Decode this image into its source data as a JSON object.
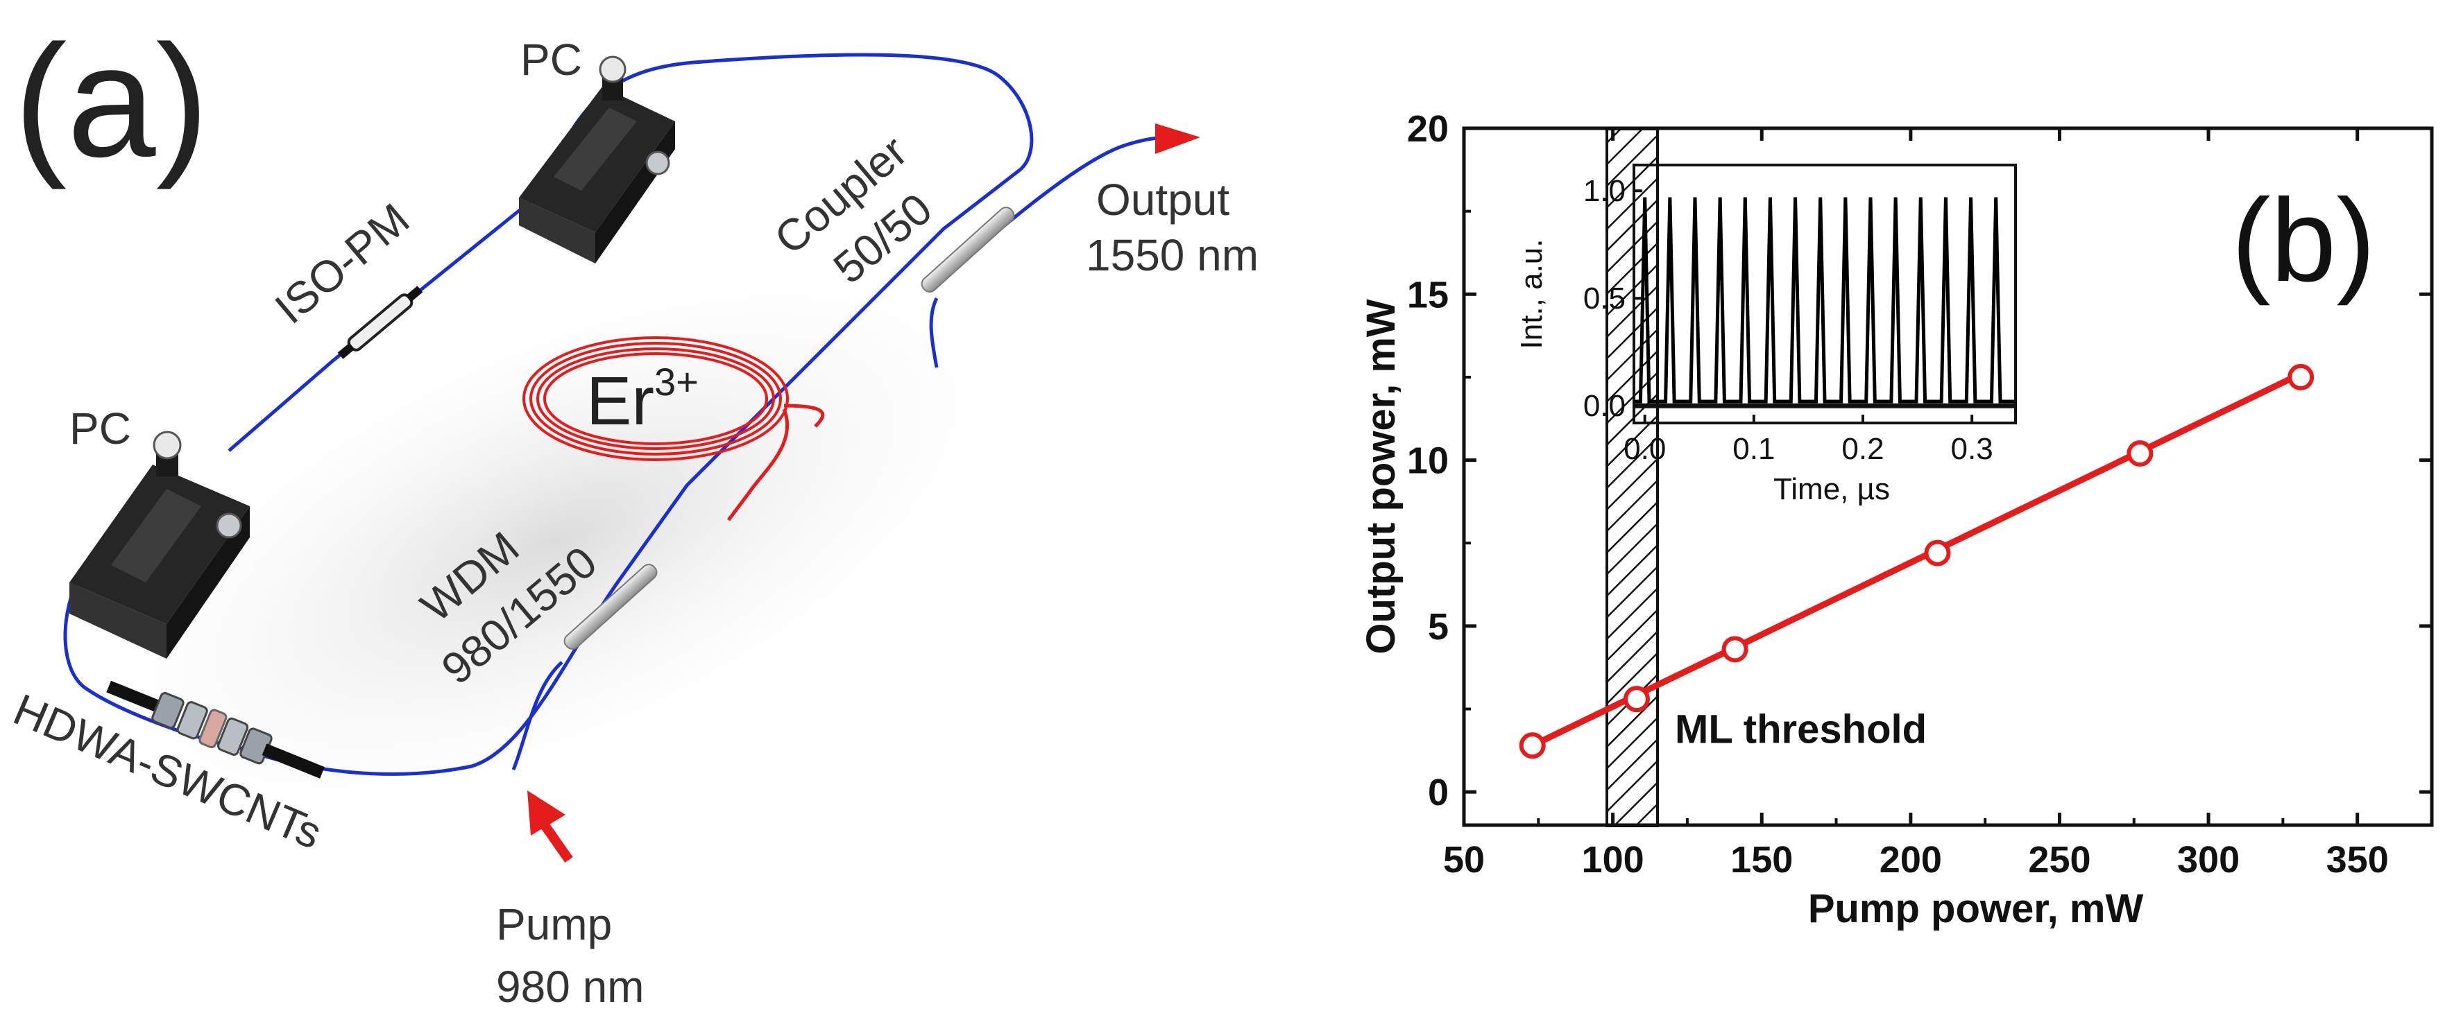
{
  "panel_a": {
    "label": "(a)",
    "components": {
      "pc_top": "PC",
      "pc_left": "PC",
      "isolator": "ISO-PM",
      "coupler_line1": "Coupler",
      "coupler_line2": "50/50",
      "output_line1": "Output",
      "output_line2": "1550 nm",
      "er_base": "Er",
      "er_sup": "3+",
      "wdm_line1": "WDM",
      "wdm_line2": "980/1550",
      "saturable_absorber": "HDWA-SWCNTs",
      "pump_line1": "Pump",
      "pump_line2": "980 nm"
    },
    "colors": {
      "fiber": "#1a2fd0",
      "active_fiber": "#e51c1c",
      "arrow": "#e51c1c",
      "device": "#2a2a2a"
    }
  },
  "chart_data": [
    {
      "id": "main",
      "type": "line",
      "panel_label": "(b)",
      "xlabel": "Pump power, mW",
      "ylabel": "Output power, mW",
      "xlim": [
        50,
        375
      ],
      "ylim": [
        -1,
        20
      ],
      "xticks": [
        50,
        100,
        150,
        200,
        250,
        300,
        350
      ],
      "yticks": [
        0,
        5,
        10,
        15,
        20
      ],
      "series": [
        {
          "name": "Output power",
          "x": [
            73,
            108,
            141,
            209,
            277,
            331
          ],
          "y": [
            1.4,
            2.8,
            4.3,
            7.2,
            10.2,
            12.5
          ],
          "marker": "open-circle",
          "color": "#e51c1c"
        }
      ],
      "fit_line": {
        "x": [
          73,
          331
        ],
        "y": [
          1.4,
          12.6
        ]
      },
      "threshold_region": {
        "x": [
          98,
          115
        ],
        "label": "ML threshold"
      }
    },
    {
      "id": "inset",
      "type": "line",
      "xlabel": "Time, µs",
      "ylabel": "Int., a.u.",
      "xlim": [
        -0.01,
        0.34
      ],
      "ylim": [
        -0.08,
        1.12
      ],
      "xticks": [
        0.0,
        0.1,
        0.2,
        0.3
      ],
      "xtick_labels": [
        "0.0",
        "0.1",
        "0.2",
        "0.3"
      ],
      "yticks": [
        0.0,
        0.5,
        1.0
      ],
      "ytick_labels": [
        "0.0",
        "0.5",
        "1.0"
      ],
      "pulse_train": {
        "times": [
          0.0,
          0.023,
          0.046,
          0.069,
          0.092,
          0.115,
          0.138,
          0.161,
          0.184,
          0.207,
          0.23,
          0.253,
          0.276,
          0.299,
          0.322
        ],
        "peak": 0.97,
        "baseline": 0.02
      },
      "color": "#000000"
    }
  ]
}
